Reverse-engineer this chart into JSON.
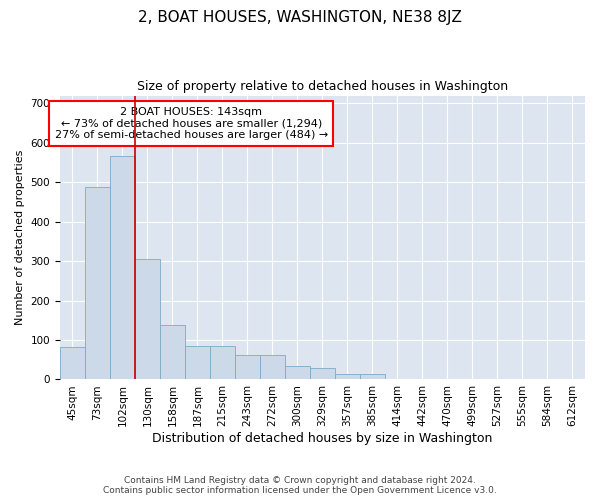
{
  "title": "2, BOAT HOUSES, WASHINGTON, NE38 8JZ",
  "subtitle": "Size of property relative to detached houses in Washington",
  "xlabel": "Distribution of detached houses by size in Washington",
  "ylabel": "Number of detached properties",
  "footer_line1": "Contains HM Land Registry data © Crown copyright and database right 2024.",
  "footer_line2": "Contains public sector information licensed under the Open Government Licence v3.0.",
  "annotation_line1": "2 BOAT HOUSES: 143sqm",
  "annotation_line2": "← 73% of detached houses are smaller (1,294)",
  "annotation_line3": "27% of semi-detached houses are larger (484) →",
  "bar_color": "#ccd9e8",
  "bar_edge_color": "#7aaac8",
  "background_color": "#dde6f0",
  "red_line_color": "#cc0000",
  "categories": [
    "45sqm",
    "73sqm",
    "102sqm",
    "130sqm",
    "158sqm",
    "187sqm",
    "215sqm",
    "243sqm",
    "272sqm",
    "300sqm",
    "329sqm",
    "357sqm",
    "385sqm",
    "414sqm",
    "442sqm",
    "470sqm",
    "499sqm",
    "527sqm",
    "555sqm",
    "584sqm",
    "612sqm"
  ],
  "values": [
    82,
    487,
    566,
    305,
    138,
    86,
    86,
    63,
    63,
    35,
    28,
    15,
    14,
    0,
    0,
    0,
    0,
    0,
    0,
    0,
    0
  ],
  "ylim": [
    0,
    720
  ],
  "yticks": [
    0,
    100,
    200,
    300,
    400,
    500,
    600,
    700
  ],
  "title_fontsize": 11,
  "subtitle_fontsize": 9,
  "ylabel_fontsize": 8,
  "xlabel_fontsize": 9,
  "tick_fontsize": 7.5,
  "annotation_fontsize": 8,
  "footer_fontsize": 6.5
}
